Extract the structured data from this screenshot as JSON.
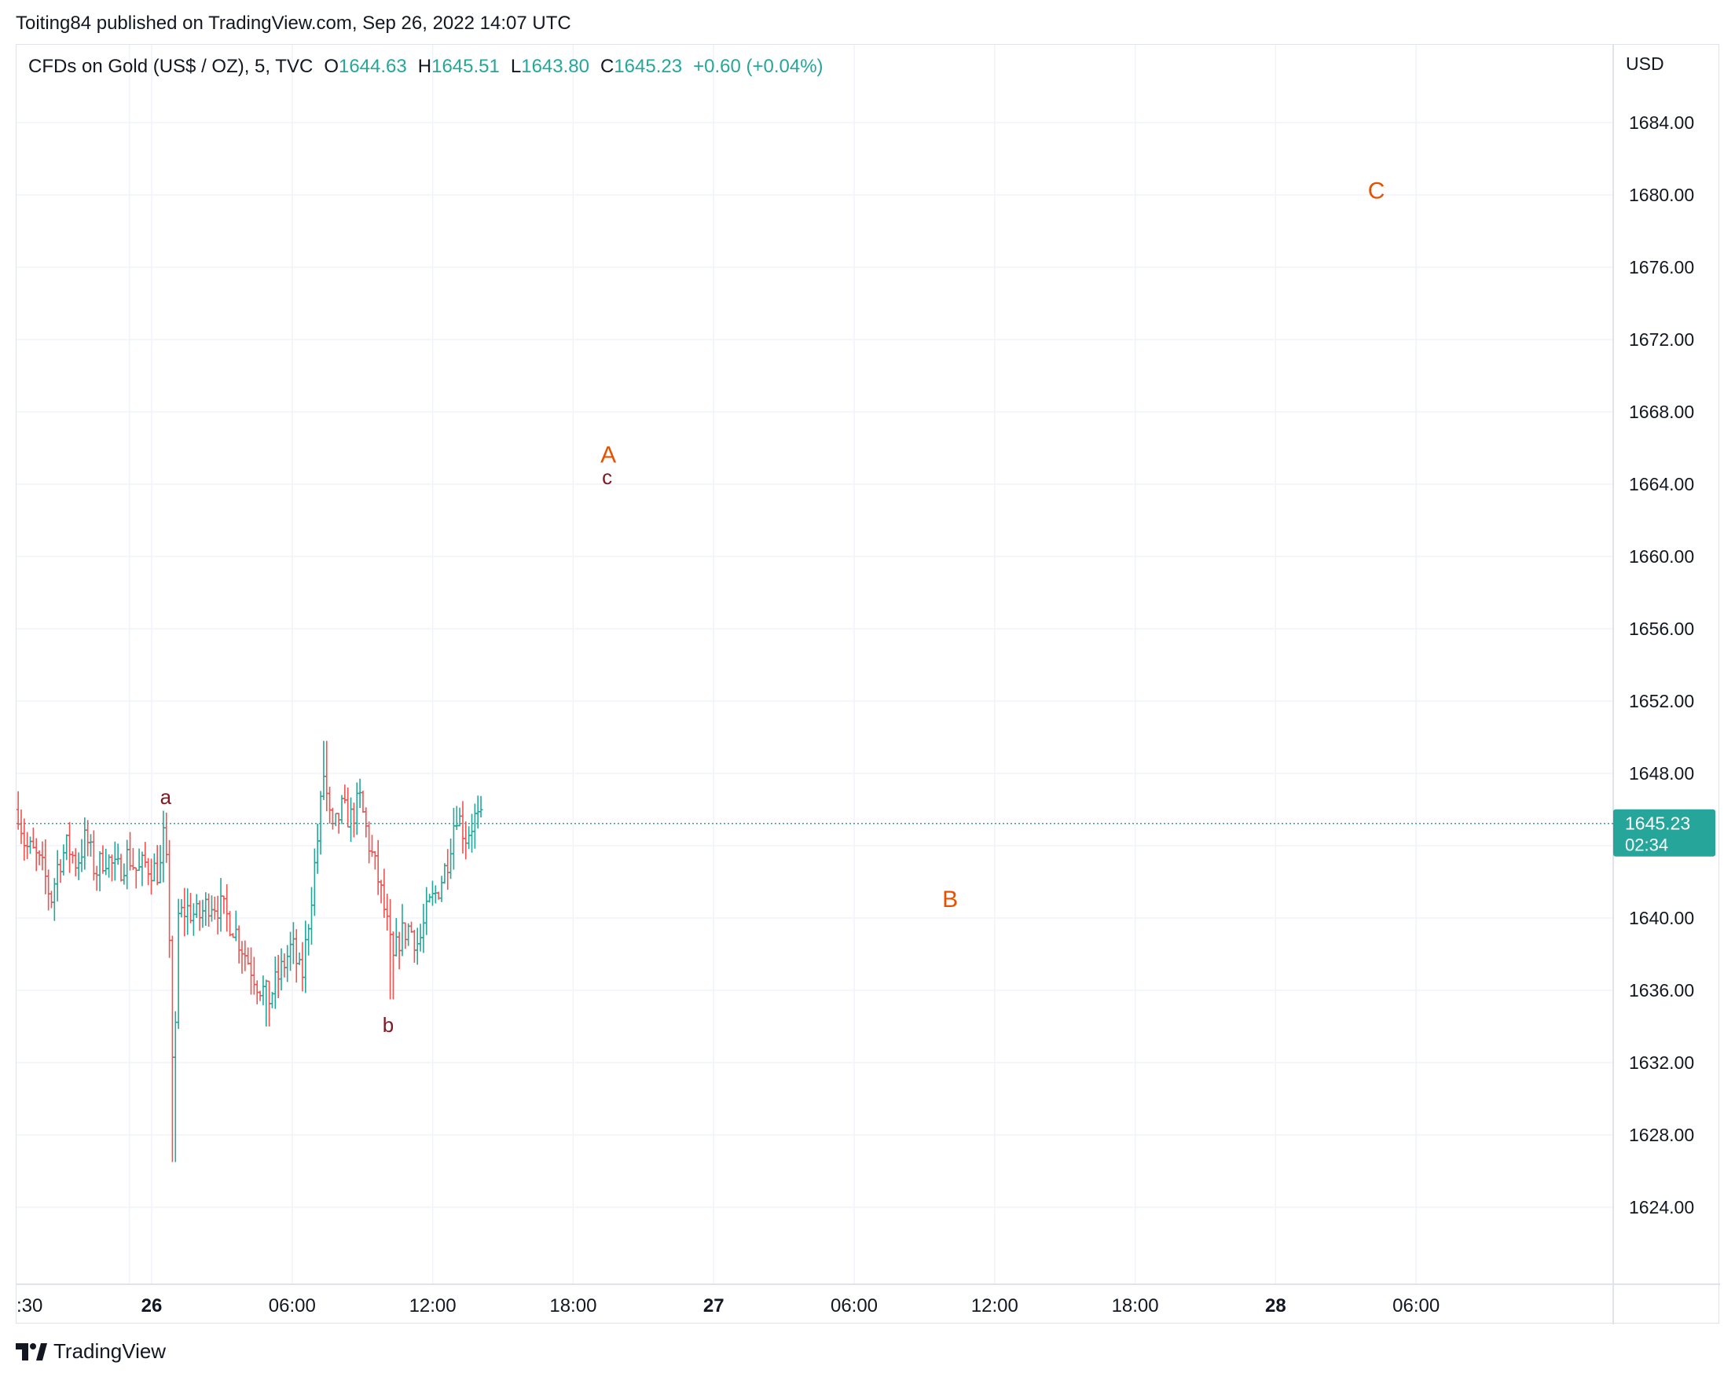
{
  "header": {
    "published_line": "Toiting84 published on TradingView.com, Sep 26, 2022 14:07 UTC"
  },
  "legend": {
    "symbol": "CFDs on Gold (US$ / OZ), 5, TVC",
    "open_key": "O",
    "open": "1644.63",
    "high_key": "H",
    "high": "1645.51",
    "low_key": "L",
    "low": "1643.80",
    "close_key": "C",
    "close": "1645.23",
    "change": "+0.60 (+0.04%)"
  },
  "price_axis": {
    "currency": "USD",
    "last_price_label": "1645.23",
    "countdown_label": "02:34"
  },
  "footer": {
    "brand": "TradingView"
  },
  "colors": {
    "up": "#26a69a",
    "down": "#ef5350",
    "grid": "#f0f3fa",
    "wave_major": "#e65100",
    "wave_minor": "#801922"
  },
  "chart_data": {
    "type": "ohlc-bars",
    "symbol": "TVC:GOLD",
    "interval": "5",
    "ylim": [
      1620,
      1688
    ],
    "y_ticks": [
      1624,
      1628,
      1632,
      1636,
      1640,
      1644,
      1648,
      1652,
      1656,
      1660,
      1664,
      1668,
      1672,
      1676,
      1680,
      1684
    ],
    "x_ticks": [
      {
        "label": ":30",
        "t": -0.95,
        "bold": false
      },
      {
        "label": "26",
        "t": 0,
        "bold": true
      },
      {
        "label": "06:00",
        "t": 6,
        "bold": false
      },
      {
        "label": "12:00",
        "t": 12,
        "bold": false
      },
      {
        "label": "18:00",
        "t": 18,
        "bold": false
      },
      {
        "label": "27",
        "t": 24,
        "bold": true
      },
      {
        "label": "06:00",
        "t": 30,
        "bold": false
      },
      {
        "label": "12:00",
        "t": 36,
        "bold": false
      },
      {
        "label": "18:00",
        "t": 42,
        "bold": false
      },
      {
        "label": "28",
        "t": 48,
        "bold": true
      },
      {
        "label": "06:00",
        "t": 54,
        "bold": false
      }
    ],
    "last_price": 1645.23,
    "anchors": [
      [
        -5.7,
        1646.0
      ],
      [
        -5.4,
        1644.0
      ],
      [
        -5.0,
        1643.5
      ],
      [
        -4.6,
        1642.5
      ],
      [
        -4.3,
        1641.0
      ],
      [
        -4.0,
        1643.0
      ],
      [
        -3.6,
        1644.0
      ],
      [
        -3.2,
        1643.0
      ],
      [
        -2.8,
        1644.5
      ],
      [
        -2.4,
        1642.5
      ],
      [
        -2.0,
        1643.5
      ],
      [
        -1.5,
        1642.5
      ],
      [
        -1.0,
        1643.5
      ],
      [
        -0.6,
        1642.5
      ],
      [
        -0.3,
        1643.0
      ],
      [
        0.35,
        1642.5
      ],
      [
        0.55,
        1645.0
      ],
      [
        0.8,
        1638.0
      ],
      [
        0.95,
        1628.5
      ],
      [
        1.1,
        1640.0
      ],
      [
        1.5,
        1640.5
      ],
      [
        2.0,
        1640.0
      ],
      [
        2.5,
        1641.0
      ],
      [
        3.0,
        1640.5
      ],
      [
        3.5,
        1639.5
      ],
      [
        4.0,
        1638.0
      ],
      [
        4.5,
        1636.5
      ],
      [
        5.0,
        1635.5
      ],
      [
        5.5,
        1637.0
      ],
      [
        6.0,
        1638.5
      ],
      [
        6.4,
        1636.5
      ],
      [
        6.8,
        1641.0
      ],
      [
        7.1,
        1644.5
      ],
      [
        7.35,
        1648.0
      ],
      [
        7.7,
        1644.5
      ],
      [
        8.1,
        1646.0
      ],
      [
        8.5,
        1645.5
      ],
      [
        8.9,
        1646.5
      ],
      [
        9.3,
        1644.0
      ],
      [
        9.7,
        1642.0
      ],
      [
        10.0,
        1640.0
      ],
      [
        10.3,
        1637.5
      ],
      [
        10.6,
        1639.0
      ],
      [
        11.0,
        1639.5
      ],
      [
        11.4,
        1638.5
      ],
      [
        11.8,
        1640.5
      ],
      [
        12.2,
        1641.5
      ],
      [
        12.6,
        1643.0
      ],
      [
        13.0,
        1646.0
      ],
      [
        13.4,
        1644.5
      ],
      [
        13.8,
        1645.5
      ],
      [
        14.1,
        1645.2
      ]
    ],
    "wave_labels": [
      {
        "text": "A",
        "t": 19.5,
        "price": 1665.2,
        "color": "#e65100",
        "size": 30
      },
      {
        "text": "c",
        "t": 19.45,
        "price": 1664.0,
        "color": "#801922",
        "size": 26
      },
      {
        "text": "B",
        "t": 34.1,
        "price": 1640.6,
        "color": "#e65100",
        "size": 30
      },
      {
        "text": "C",
        "t": 52.3,
        "price": 1679.8,
        "color": "#e65100",
        "size": 30
      },
      {
        "text": "a",
        "t": 0.6,
        "price": 1646.3,
        "color": "#801922",
        "size": 26
      },
      {
        "text": "b",
        "t": 10.1,
        "price": 1633.7,
        "color": "#801922",
        "size": 26
      }
    ]
  }
}
